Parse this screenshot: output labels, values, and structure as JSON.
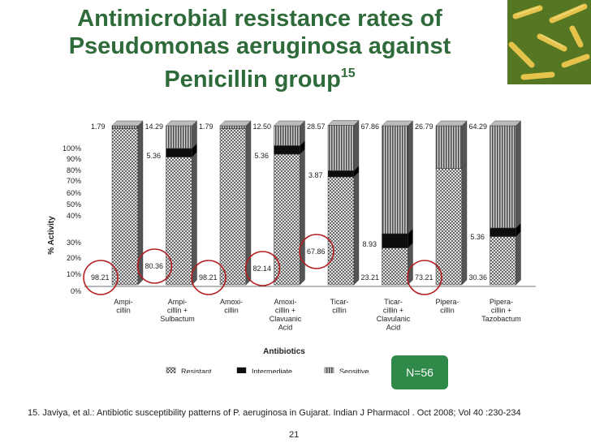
{
  "slide": {
    "title_main": "Antimicrobial resistance rates of Pseudomonas aeruginosa against Penicillin group",
    "title_ref": "15",
    "n_label": "N=56",
    "footnote": "15. Javiya, et al.: Antibiotic susceptibility patterns of P. aeruginosa in Gujarat. Indian J Pharmacol . Oct 2008; Vol 40 :230-234",
    "page_number": "21",
    "corner_image": "bacteria-micrograph"
  },
  "chart_data": {
    "type": "bar",
    "stacked": true,
    "xlabel": "Antibiotics",
    "ylabel": "% Activity",
    "ylim": [
      0,
      100
    ],
    "y_ticks": [
      "0%",
      "10%",
      "20%",
      "30%",
      "40%",
      "50%",
      "60%",
      "70%",
      "80%",
      "90%",
      "100%"
    ],
    "categories": [
      [
        "Ampi-",
        "cillin"
      ],
      [
        "Ampi-",
        "cillin +",
        "Sulbactum"
      ],
      [
        "Amoxi-",
        "cillin"
      ],
      [
        "Amoxi-",
        "cillin +",
        "Clavuanic",
        "Acid"
      ],
      [
        "Ticar-",
        "cillin"
      ],
      [
        "Ticar-",
        "cillin +",
        "Clavulanic",
        "Acid"
      ],
      [
        "Pipera-",
        "cillin"
      ],
      [
        "Pipera-",
        "cillin +",
        "Tazobactum"
      ]
    ],
    "series": [
      {
        "name": "Resistant",
        "values": [
          98.21,
          80.36,
          98.21,
          82.14,
          67.86,
          23.21,
          73.21,
          30.36
        ]
      },
      {
        "name": "Intermediate",
        "values": [
          0,
          5.36,
          0,
          5.36,
          3.87,
          8.93,
          0,
          5.36
        ]
      },
      {
        "name": "Sensitive",
        "values": [
          1.79,
          14.29,
          1.79,
          12.5,
          28.57,
          67.86,
          26.79,
          64.29
        ]
      }
    ],
    "labels": {
      "resistant": [
        "98.21",
        "80.36",
        "98.21",
        "82.14",
        "67.86",
        "23.21",
        "73.21",
        "30.36"
      ],
      "intermediate": [
        "",
        "5.36",
        "",
        "5.36",
        "3.87",
        "8.93",
        "",
        "5.36"
      ],
      "sensitive": [
        "1.79",
        "14.29",
        "1.79",
        "12.50",
        "28.57",
        "67.86",
        "26.79",
        "64.29"
      ]
    },
    "circled_resistant": [
      true,
      true,
      true,
      true,
      true,
      false,
      true,
      false
    ],
    "legend_position": "bottom",
    "colors": {
      "resistant": "#d8d8d8",
      "intermediate": "#111111",
      "sensitive": "#8a8a8a",
      "circle": "#b41f1f"
    }
  }
}
